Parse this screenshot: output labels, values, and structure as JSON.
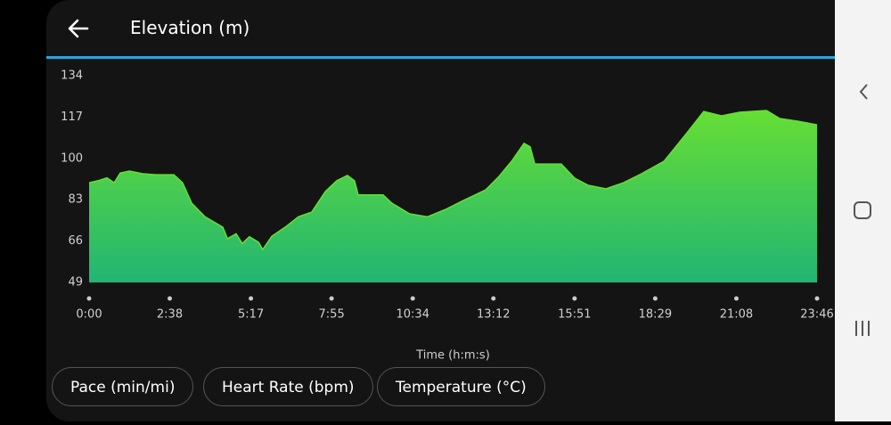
{
  "header": {
    "title": "Elevation (m)"
  },
  "chart_data": {
    "type": "area",
    "xlabel": "Time (h:m:s)",
    "x": [
      0,
      17,
      35,
      49,
      61,
      79,
      105,
      131,
      166,
      183,
      201,
      227,
      262,
      271,
      288,
      300,
      314,
      332,
      340,
      358,
      384,
      410,
      436,
      463,
      485,
      506,
      520,
      527,
      576,
      593,
      628,
      663,
      698,
      733,
      777,
      803,
      829,
      852,
      864,
      873,
      925,
      951,
      977,
      1012,
      1047,
      1082,
      1126,
      1170,
      1204,
      1239,
      1274,
      1327,
      1353,
      1388,
      1426
    ],
    "values": [
      90,
      90.8,
      92,
      90,
      94,
      94.8,
      93.7,
      93.3,
      93.3,
      90,
      81.6,
      76,
      71.7,
      67,
      69,
      65,
      67.8,
      65.5,
      62.5,
      68,
      71.7,
      76,
      77.9,
      86.4,
      90.8,
      93,
      90.8,
      85,
      85,
      81.6,
      77.2,
      76,
      79,
      82.7,
      87.1,
      92.6,
      99.2,
      106.2,
      104.8,
      97.7,
      97.7,
      91.9,
      89,
      87.5,
      90,
      93.7,
      98.8,
      110.2,
      119.3,
      117.5,
      119,
      119.7,
      116.4,
      115.3,
      113.8
    ],
    "xlim": [
      0,
      1426
    ],
    "xticks": [
      {
        "value": 0,
        "label": "0:00"
      },
      {
        "value": 158,
        "label": "2:38"
      },
      {
        "value": 317,
        "label": "5:17"
      },
      {
        "value": 475,
        "label": "7:55"
      },
      {
        "value": 634,
        "label": "10:34"
      },
      {
        "value": 792,
        "label": "13:12"
      },
      {
        "value": 951,
        "label": "15:51"
      },
      {
        "value": 1109,
        "label": "18:29"
      },
      {
        "value": 1268,
        "label": "21:08"
      },
      {
        "value": 1426,
        "label": "23:46"
      }
    ],
    "ylim": [
      49,
      134
    ],
    "yticks": [
      49,
      66,
      83,
      100,
      117,
      134
    ],
    "color_top": "#66de35",
    "color_bottom": "#22b573"
  },
  "buttons": [
    "Pace (min/mi)",
    "Heart Rate (bpm)",
    "Temperature (°C)"
  ]
}
